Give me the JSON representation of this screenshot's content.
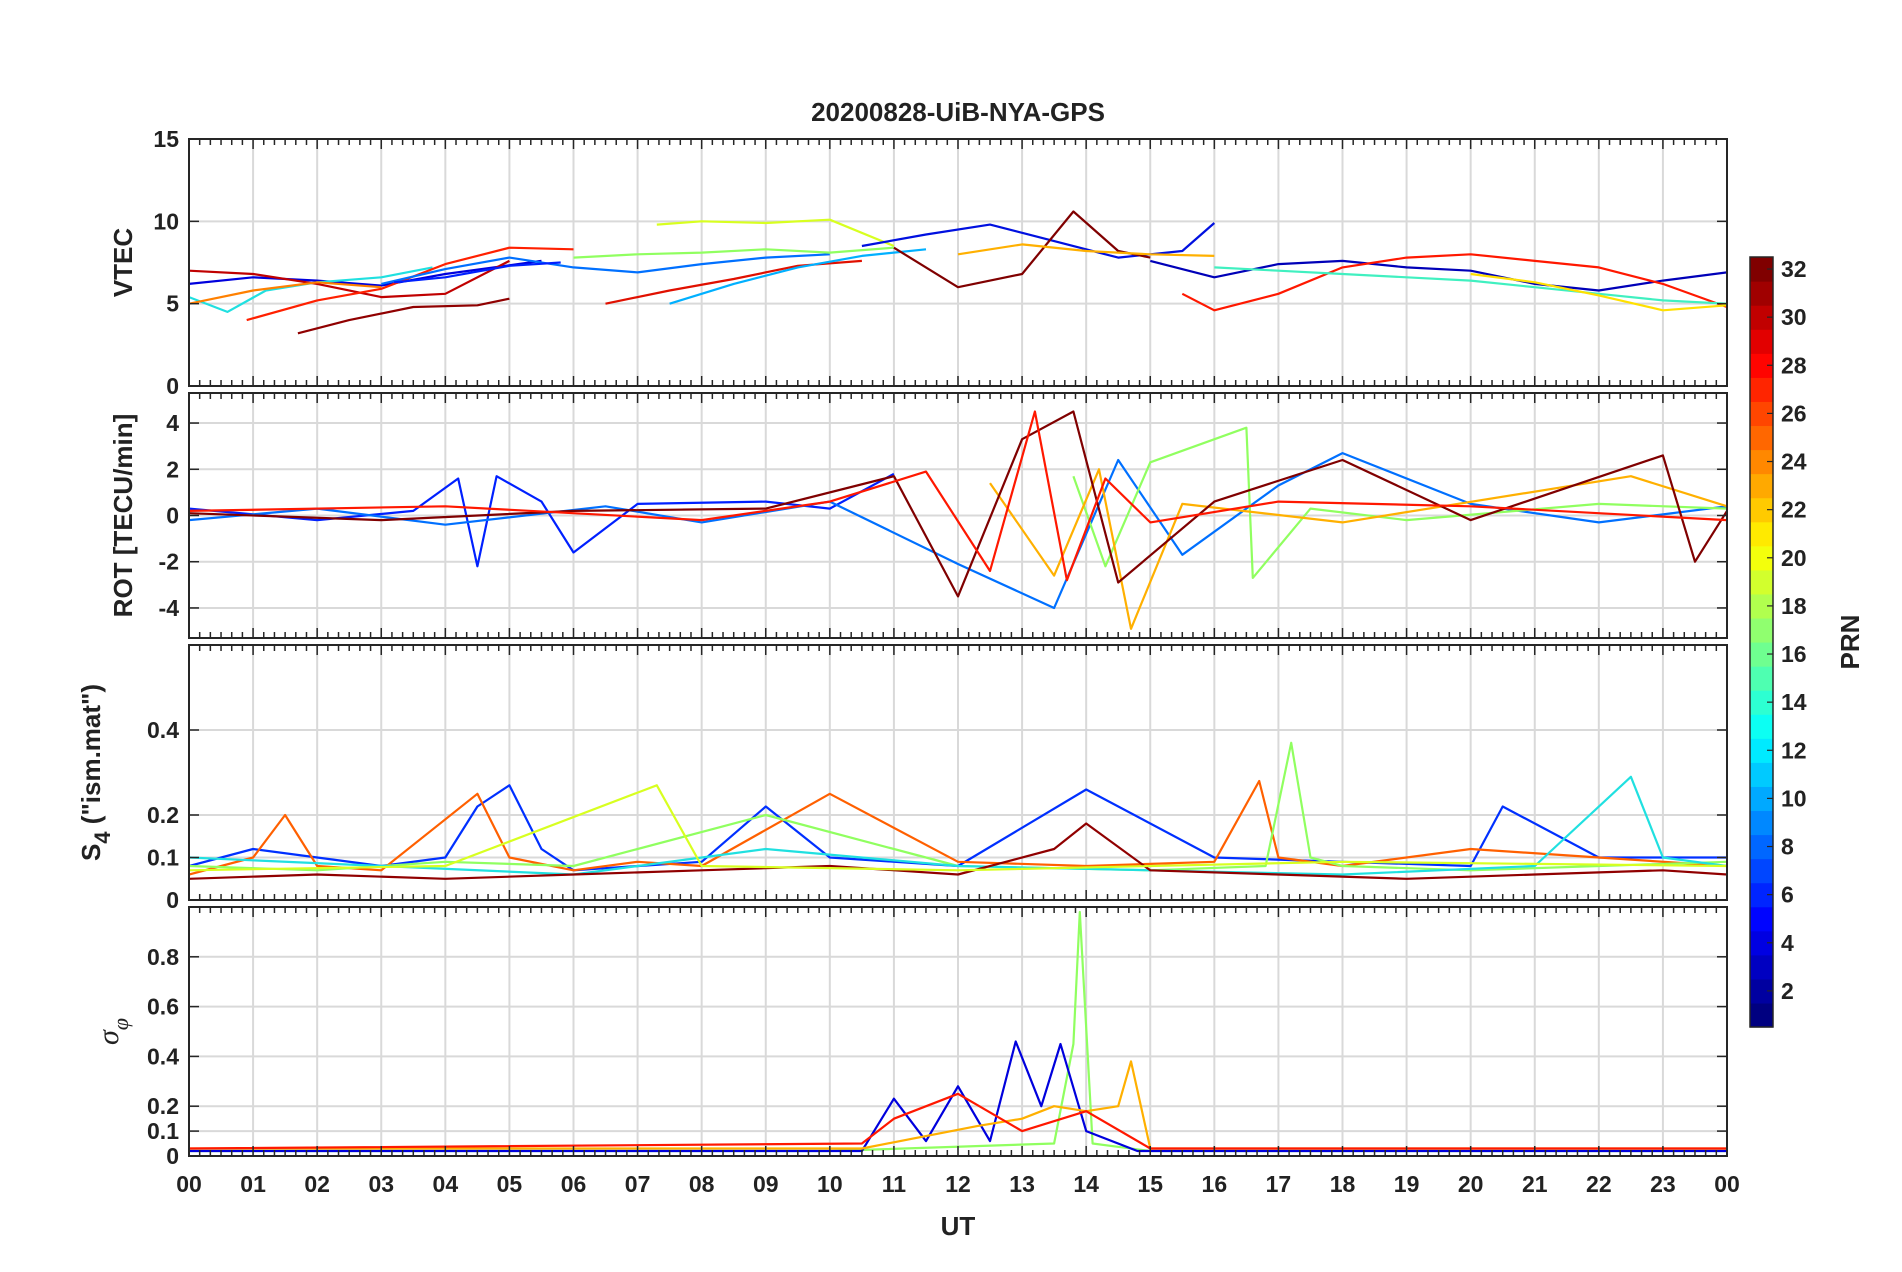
{
  "chart_data": {
    "type": "line",
    "title": "20200828-UiB-NYA-GPS",
    "x_axis": {
      "label": "UT",
      "range": [
        0,
        24
      ],
      "tick_labels": [
        "00",
        "01",
        "02",
        "03",
        "04",
        "05",
        "06",
        "07",
        "08",
        "09",
        "10",
        "11",
        "12",
        "13",
        "14",
        "15",
        "16",
        "17",
        "18",
        "19",
        "20",
        "21",
        "22",
        "23",
        "00"
      ]
    },
    "grid": true,
    "colorbar": {
      "label": "PRN",
      "range": [
        1,
        32
      ],
      "tick_labels": [
        "2",
        "4",
        "6",
        "8",
        "10",
        "12",
        "14",
        "16",
        "18",
        "20",
        "22",
        "24",
        "26",
        "28",
        "30",
        "32"
      ],
      "colormap": "jet",
      "placement": "right"
    },
    "panels": [
      {
        "id": "vtec",
        "ylabel": "VTEC",
        "ylim": [
          0,
          15
        ],
        "yticks": [
          0,
          5,
          10,
          15
        ],
        "ytick_labels": [
          "0",
          "5",
          "10",
          "15"
        ],
        "series": [
          {
            "prn": 3,
            "color": "#0000dd",
            "x": [
              0.0,
              1.0,
              2.0,
              3.0,
              4.0,
              5.5
            ],
            "y": [
              6.2,
              6.6,
              6.4,
              6.1,
              6.8,
              7.6
            ]
          },
          {
            "prn": 13,
            "color": "#20e0e0",
            "x": [
              0.0,
              0.6,
              1.2,
              2.0,
              3.0,
              3.8
            ],
            "y": [
              5.4,
              4.5,
              5.8,
              6.3,
              6.6,
              7.2
            ]
          },
          {
            "prn": 30,
            "color": "#c00000",
            "x": [
              0.0,
              1.0,
              2.0,
              3.0,
              4.0,
              5.0
            ],
            "y": [
              7.0,
              6.8,
              6.2,
              5.4,
              5.6,
              7.6
            ]
          },
          {
            "prn": 24,
            "color": "#ff8000",
            "x": [
              0.0,
              1.0,
              2.0,
              3.0
            ],
            "y": [
              5.0,
              5.8,
              6.3,
              6.0
            ]
          },
          {
            "prn": 31,
            "color": "#900000",
            "x": [
              1.7,
              2.5,
              3.5,
              4.5,
              5.0
            ],
            "y": [
              3.2,
              4.0,
              4.8,
              4.9,
              5.3
            ]
          },
          {
            "prn": 27,
            "color": "#ff2000",
            "x": [
              0.9,
              2.0,
              3.0,
              4.0,
              5.0,
              6.0
            ],
            "y": [
              4.0,
              5.2,
              5.9,
              7.4,
              8.4,
              8.3
            ]
          },
          {
            "prn": 9,
            "color": "#0070ff",
            "x": [
              3.0,
              4.0,
              5.0,
              6.0,
              7.0,
              8.0,
              9.0,
              10.0
            ],
            "y": [
              6.2,
              7.1,
              7.8,
              7.2,
              6.9,
              7.4,
              7.8,
              8.0
            ]
          },
          {
            "prn": 5,
            "color": "#0020ff",
            "x": [
              3.2,
              4.0,
              5.0,
              5.8
            ],
            "y": [
              6.3,
              6.6,
              7.3,
              7.5
            ]
          },
          {
            "prn": 19,
            "color": "#d8ff20",
            "x": [
              7.3,
              8.0,
              9.0,
              10.0,
              11.0
            ],
            "y": [
              9.8,
              10.0,
              9.9,
              10.1,
              8.5
            ]
          },
          {
            "prn": 17,
            "color": "#90ff60",
            "x": [
              6.0,
              7.0,
              8.0,
              9.0,
              10.0,
              11.0
            ],
            "y": [
              7.8,
              8.0,
              8.1,
              8.3,
              8.1,
              8.4
            ]
          },
          {
            "prn": 29,
            "color": "#e01000",
            "x": [
              6.5,
              7.5,
              8.5,
              9.5,
              10.5
            ],
            "y": [
              5.0,
              5.8,
              6.5,
              7.3,
              7.6
            ]
          },
          {
            "prn": 11,
            "color": "#00b0ff",
            "x": [
              7.5,
              8.5,
              9.5,
              10.5,
              11.5
            ],
            "y": [
              5.0,
              6.2,
              7.2,
              7.9,
              8.3
            ]
          },
          {
            "prn": 4,
            "color": "#0010e0",
            "x": [
              10.5,
              11.5,
              12.5,
              13.5,
              14.5,
              15.5,
              16.0
            ],
            "y": [
              8.5,
              9.2,
              9.8,
              8.8,
              7.8,
              8.2,
              9.9
            ]
          },
          {
            "prn": 32,
            "color": "#800000",
            "x": [
              11.0,
              12.0,
              13.0,
              13.8,
              14.5,
              15.0
            ],
            "y": [
              8.4,
              6.0,
              6.8,
              10.6,
              8.2,
              7.8
            ]
          },
          {
            "prn": 22,
            "color": "#ffb000",
            "x": [
              12.0,
              13.0,
              14.0,
              15.0,
              16.0
            ],
            "y": [
              8.0,
              8.6,
              8.2,
              8.0,
              7.9
            ]
          },
          {
            "prn": 2,
            "color": "#0000b8",
            "x": [
              15.0,
              16.0,
              17.0,
              18.0,
              19.0,
              20.0,
              21.0,
              22.0,
              23.0,
              24.0
            ],
            "y": [
              7.6,
              6.6,
              7.4,
              7.6,
              7.2,
              7.0,
              6.2,
              5.8,
              6.4,
              6.9
            ]
          },
          {
            "prn": 28,
            "color": "#ff1800",
            "x": [
              15.5,
              16.0,
              17.0,
              18.0,
              19.0,
              20.0,
              21.0,
              22.0,
              23.0,
              24.0
            ],
            "y": [
              5.6,
              4.6,
              5.6,
              7.2,
              7.8,
              8.0,
              7.6,
              7.2,
              6.2,
              4.8
            ]
          },
          {
            "prn": 14,
            "color": "#40f0c0",
            "x": [
              16.0,
              17.0,
              18.0,
              19.0,
              20.0,
              21.0,
              22.0,
              23.0,
              24.0
            ],
            "y": [
              7.2,
              7.0,
              6.8,
              6.6,
              6.4,
              6.0,
              5.6,
              5.2,
              5.0
            ]
          },
          {
            "prn": 20,
            "color": "#ffe000",
            "x": [
              20.0,
              21.0,
              22.0,
              23.0,
              24.0
            ],
            "y": [
              6.8,
              6.3,
              5.5,
              4.6,
              4.9
            ]
          }
        ]
      },
      {
        "id": "rot",
        "ylabel": "ROT [TECU/min]",
        "ylim": [
          -5.3,
          5.3
        ],
        "yticks": [
          -4,
          -2,
          0,
          2,
          4
        ],
        "ytick_labels": [
          "-4",
          "-2",
          "0",
          "2",
          "4"
        ],
        "series": [
          {
            "prn": 5,
            "color": "#0020ff",
            "x": [
              0.0,
              2.0,
              3.5,
              4.2,
              4.5,
              4.8,
              5.5,
              6.0,
              7.0,
              9.0,
              10.0,
              11.0
            ],
            "y": [
              0.3,
              -0.2,
              0.2,
              1.6,
              -2.2,
              1.7,
              0.6,
              -1.6,
              0.5,
              0.6,
              0.3,
              1.8
            ]
          },
          {
            "prn": 9,
            "color": "#0070ff",
            "x": [
              0.0,
              2.0,
              4.0,
              6.5,
              8.0,
              10.0,
              12.0,
              13.5,
              14.5,
              15.5,
              17.0,
              18.0,
              20.0,
              22.0,
              24.0
            ],
            "y": [
              -0.2,
              0.3,
              -0.4,
              0.4,
              -0.3,
              0.6,
              -2.1,
              -4.0,
              2.4,
              -1.7,
              1.3,
              2.7,
              0.5,
              -0.3,
              0.4
            ]
          },
          {
            "prn": 17,
            "color": "#90ff60",
            "x": [
              13.8,
              14.3,
              15.0,
              16.5,
              16.6,
              17.5,
              19.0,
              22.0,
              24.0
            ],
            "y": [
              1.7,
              -2.2,
              2.3,
              3.8,
              -2.7,
              0.3,
              -0.2,
              0.5,
              0.3
            ]
          },
          {
            "prn": 22,
            "color": "#ffb000",
            "x": [
              12.5,
              13.5,
              14.2,
              14.7,
              15.5,
              18.0,
              22.5,
              24.0
            ],
            "y": [
              1.4,
              -2.6,
              2.0,
              -4.9,
              0.5,
              -0.3,
              1.7,
              0.4
            ]
          },
          {
            "prn": 32,
            "color": "#800000",
            "x": [
              0.0,
              3.0,
              6.0,
              9.0,
              11.0,
              12.0,
              13.0,
              13.8,
              14.5,
              16.0,
              18.0,
              20.0,
              23.0,
              23.5,
              24.0
            ],
            "y": [
              0.1,
              -0.2,
              0.2,
              0.3,
              1.7,
              -3.5,
              3.3,
              4.5,
              -2.9,
              0.6,
              2.4,
              -0.2,
              2.6,
              -2.0,
              0.2
            ]
          },
          {
            "prn": 28,
            "color": "#ff1800",
            "x": [
              0.0,
              4.0,
              8.0,
              10.0,
              11.5,
              12.5,
              13.2,
              13.7,
              14.3,
              15.0,
              17.0,
              20.0,
              24.0
            ],
            "y": [
              0.2,
              0.4,
              -0.2,
              0.6,
              1.9,
              -2.4,
              4.5,
              -2.8,
              1.6,
              -0.3,
              0.6,
              0.4,
              -0.2
            ]
          }
        ]
      },
      {
        "id": "s4",
        "ylabel": "S4 (\"ism.mat\")",
        "ylabel_main": "S",
        "ylabel_sub": "4",
        "ylabel_rest": " (\"ism.mat\")",
        "ylim": [
          0,
          0.6
        ],
        "yticks": [
          0,
          0.1,
          0.2,
          0.4
        ],
        "ytick_labels": [
          "0",
          "0.1",
          "0.2",
          "0.4"
        ],
        "series": [
          {
            "prn": 6,
            "color": "#0030ff",
            "x": [
              0.0,
              1.0,
              2.0,
              3.0,
              4.0,
              4.5,
              5.0,
              5.5,
              6.0,
              8.0,
              9.0,
              10.0,
              12.0,
              14.0,
              16.0,
              18.0,
              20.0,
              20.5,
              22.0,
              24.0
            ],
            "y": [
              0.08,
              0.12,
              0.1,
              0.08,
              0.1,
              0.22,
              0.27,
              0.12,
              0.07,
              0.09,
              0.22,
              0.1,
              0.08,
              0.26,
              0.1,
              0.09,
              0.08,
              0.22,
              0.1,
              0.1
            ]
          },
          {
            "prn": 25,
            "color": "#ff6000",
            "x": [
              0.0,
              1.0,
              1.5,
              2.0,
              3.0,
              4.5,
              5.0,
              6.0,
              7.0,
              8.0,
              10.0,
              12.0,
              14.0,
              16.0,
              16.7,
              17.0,
              18.0,
              20.0,
              22.0,
              24.0
            ],
            "y": [
              0.06,
              0.1,
              0.2,
              0.08,
              0.07,
              0.25,
              0.1,
              0.07,
              0.09,
              0.08,
              0.25,
              0.09,
              0.08,
              0.09,
              0.28,
              0.1,
              0.08,
              0.12,
              0.1,
              0.08
            ]
          },
          {
            "prn": 17,
            "color": "#90ff60",
            "x": [
              0.0,
              2.0,
              4.0,
              6.0,
              9.0,
              12.0,
              15.0,
              16.8,
              17.2,
              17.5,
              18.0,
              20.0,
              22.0,
              24.0
            ],
            "y": [
              0.08,
              0.07,
              0.09,
              0.08,
              0.2,
              0.08,
              0.07,
              0.08,
              0.37,
              0.1,
              0.08,
              0.07,
              0.08,
              0.09
            ]
          },
          {
            "prn": 13,
            "color": "#20e0e0",
            "x": [
              0.0,
              3.0,
              6.0,
              9.0,
              12.0,
              15.0,
              18.0,
              21.0,
              22.5,
              23.0,
              24.0
            ],
            "y": [
              0.1,
              0.08,
              0.06,
              0.12,
              0.08,
              0.07,
              0.06,
              0.08,
              0.29,
              0.1,
              0.08
            ]
          },
          {
            "prn": 31,
            "color": "#900000",
            "x": [
              0.0,
              2.0,
              4.0,
              6.0,
              8.0,
              10.0,
              12.0,
              13.5,
              14.0,
              15.0,
              17.0,
              19.0,
              21.0,
              23.0,
              24.0
            ],
            "y": [
              0.05,
              0.06,
              0.05,
              0.06,
              0.07,
              0.08,
              0.06,
              0.12,
              0.18,
              0.07,
              0.06,
              0.05,
              0.06,
              0.07,
              0.06
            ]
          },
          {
            "prn": 19,
            "color": "#d8ff20",
            "x": [
              0.0,
              4.0,
              7.3,
              8.0,
              12.0,
              18.0,
              24.0
            ],
            "y": [
              0.07,
              0.08,
              0.27,
              0.08,
              0.07,
              0.09,
              0.08
            ]
          }
        ]
      },
      {
        "id": "sigma_phi",
        "ylabel": "σφ",
        "ylabel_main": "σ",
        "ylabel_sub": "φ",
        "ylim": [
          0,
          1.0
        ],
        "yticks": [
          0,
          0.1,
          0.2,
          0.4,
          0.6,
          0.8
        ],
        "ytick_labels": [
          "0",
          "0.1",
          "0.2",
          "0.4",
          "0.6",
          "0.8"
        ],
        "series": [
          {
            "prn": 17,
            "color": "#90ff60",
            "x": [
              0.0,
              10.0,
              13.5,
              13.8,
              13.9,
              14.1,
              15.0,
              24.0
            ],
            "y": [
              0.02,
              0.02,
              0.05,
              0.45,
              0.98,
              0.05,
              0.02,
              0.02
            ]
          },
          {
            "prn": 3,
            "color": "#0000dd",
            "x": [
              0.0,
              10.5,
              11.0,
              11.5,
              12.0,
              12.5,
              12.9,
              13.3,
              13.6,
              14.0,
              14.8,
              24.0
            ],
            "y": [
              0.02,
              0.02,
              0.23,
              0.06,
              0.28,
              0.06,
              0.46,
              0.2,
              0.45,
              0.1,
              0.02,
              0.02
            ]
          },
          {
            "prn": 22,
            "color": "#ffb000",
            "x": [
              0.0,
              10.5,
              12.3,
              13.0,
              13.5,
              14.0,
              14.5,
              14.7,
              15.0,
              24.0
            ],
            "y": [
              0.03,
              0.03,
              0.12,
              0.15,
              0.2,
              0.18,
              0.2,
              0.38,
              0.03,
              0.03
            ]
          },
          {
            "prn": 28,
            "color": "#ff1800",
            "x": [
              0.0,
              10.5,
              11.0,
              12.0,
              13.0,
              14.0,
              15.0,
              24.0
            ],
            "y": [
              0.03,
              0.05,
              0.15,
              0.25,
              0.1,
              0.18,
              0.03,
              0.03
            ]
          }
        ]
      }
    ]
  }
}
